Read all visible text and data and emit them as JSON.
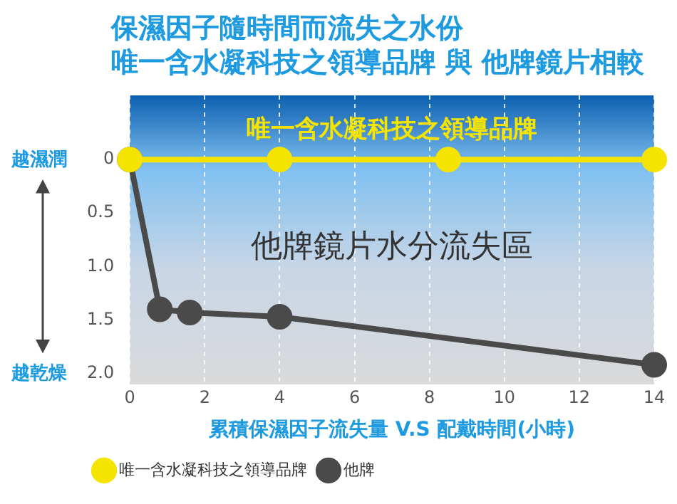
{
  "chart_data": {
    "type": "line",
    "title": "保濕因子隨時間而流失之水份",
    "subtitle": "唯一含水凝科技之領導品牌 與 他牌鏡片相較",
    "xlabel": "累積保濕因子流失量 V.S 配戴時間(小時)",
    "xlim": [
      0,
      14
    ],
    "xticks": [
      0,
      2,
      4,
      6,
      8,
      10,
      12,
      14
    ],
    "ylim": [
      2.1,
      -0.6
    ],
    "yticks": [
      0,
      {
        "value": 0.5,
        "label": "0.5"
      },
      {
        "value": 1,
        "label": "1.0"
      },
      {
        "value": 1.5,
        "label": "1.5"
      },
      {
        "value": 2,
        "label": "2.0"
      }
    ],
    "series": [
      {
        "name": "唯一含水凝科技之領導品牌",
        "color": "#f5e400",
        "x": [
          0,
          4,
          8.5,
          14
        ],
        "values": [
          0,
          0,
          0,
          0
        ]
      },
      {
        "name": "他牌",
        "color": "#4a4a4a",
        "x": [
          0,
          0.8,
          1.6,
          4,
          14
        ],
        "values": [
          0,
          1.4,
          1.43,
          1.47,
          1.92
        ]
      }
    ],
    "annotations": [
      "唯一含水凝科技之領導品牌",
      "他牌鏡片水分流失區",
      "越濕潤",
      "越乾燥"
    ],
    "grid": "x",
    "legend": "bottom left",
    "marker": "circle",
    "line_style": "solid"
  }
}
